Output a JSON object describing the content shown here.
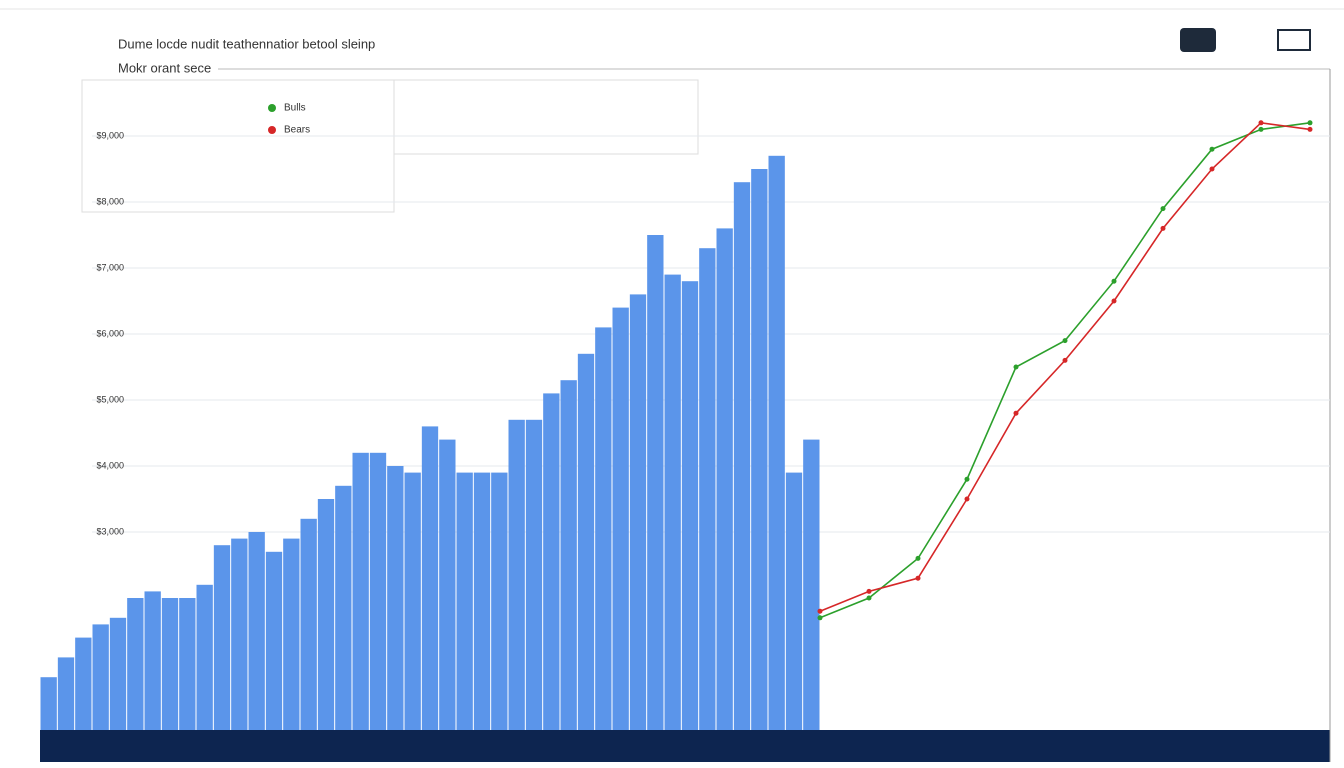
{
  "chart_data": [
    {
      "type": "bar",
      "title": "Dume locde nudit teathennatior betool sleinp",
      "subtitle": "Mokr orant sece",
      "color": "#5b95ea",
      "values": [
        800,
        1100,
        1400,
        1600,
        1700,
        2000,
        2100,
        2000,
        2000,
        2200,
        2800,
        2900,
        3000,
        2700,
        2900,
        3200,
        3500,
        3700,
        4200,
        4200,
        4000,
        3900,
        4600,
        4400,
        3900,
        3900,
        3900,
        4700,
        4700,
        5100,
        5300,
        5700,
        6100,
        6400,
        6600,
        7500,
        6900,
        6800,
        7300,
        7600,
        8300,
        8500,
        8700,
        3900,
        4400
      ],
      "ylim": [
        0,
        10000
      ],
      "yticks": [
        {
          "value": 3000,
          "label": "$3,000"
        },
        {
          "value": 4000,
          "label": "$4,000"
        },
        {
          "value": 5000,
          "label": "$5,000"
        },
        {
          "value": 6000,
          "label": "$6,000"
        },
        {
          "value": 7000,
          "label": "$7,000"
        },
        {
          "value": 8000,
          "label": "$8,000"
        },
        {
          "value": 9000,
          "label": "$9,000"
        }
      ],
      "grid": true
    },
    {
      "type": "line",
      "x": [
        0,
        2,
        4,
        6,
        8,
        10,
        12,
        14,
        16,
        18,
        20
      ],
      "xlim": [
        0,
        20
      ],
      "ylim": [
        0,
        10000
      ],
      "series": [
        {
          "name": "Bulls",
          "color": "#2ca02c",
          "values": [
            1700,
            2000,
            2600,
            3800,
            5500,
            5900,
            6800,
            7900,
            8800,
            9100,
            9200
          ]
        },
        {
          "name": "Bears",
          "color": "#d62728",
          "values": [
            1800,
            2100,
            2300,
            3500,
            4800,
            5600,
            6500,
            7600,
            8500,
            9200,
            9100
          ]
        }
      ]
    }
  ]
}
